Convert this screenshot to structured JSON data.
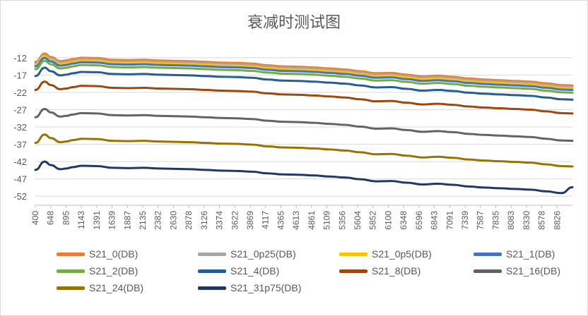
{
  "chart_data": {
    "type": "line",
    "title": "衰减时测试图",
    "xlabel": "",
    "ylabel": "",
    "ylim": [
      -54,
      -10
    ],
    "yticks": [
      -12,
      -17,
      -22,
      -27,
      -32,
      -37,
      -42,
      -47,
      -52
    ],
    "xlim": [
      400,
      9000
    ],
    "xtick_labels": [
      "400",
      "648",
      "895",
      "1143",
      "1391",
      "1639",
      "1887",
      "2135",
      "2382",
      "2630",
      "2878",
      "3126",
      "3374",
      "3622",
      "3869",
      "4117",
      "4365",
      "4613",
      "4861",
      "5109",
      "5356",
      "5604",
      "5852",
      "6100",
      "6348",
      "6596",
      "6843",
      "7091",
      "7339",
      "7587",
      "7835",
      "8083",
      "8330",
      "8578",
      "8826"
    ],
    "grid": "horizontal",
    "legend_position": "bottom",
    "x": [
      400,
      550,
      648,
      800,
      895,
      1000,
      1143,
      1391,
      1639,
      1887,
      2135,
      2382,
      2630,
      2878,
      3126,
      3374,
      3622,
      3869,
      4117,
      4365,
      4613,
      4861,
      5109,
      5356,
      5604,
      5852,
      6100,
      6348,
      6596,
      6843,
      7091,
      7339,
      7587,
      7835,
      8083,
      8330,
      8578,
      8826,
      9000
    ],
    "series": [
      {
        "name": "S21_0(DB)",
        "color": "#ED7D31",
        "values": [
          -13.2,
          -10.8,
          -11.8,
          -13.0,
          -12.8,
          -12.4,
          -12.0,
          -12.1,
          -12.6,
          -12.7,
          -12.6,
          -12.8,
          -12.9,
          -13.0,
          -13.2,
          -13.4,
          -13.5,
          -13.7,
          -14.2,
          -14.5,
          -14.6,
          -14.8,
          -15.1,
          -15.4,
          -15.9,
          -16.5,
          -16.4,
          -16.9,
          -17.4,
          -17.2,
          -17.5,
          -18.0,
          -18.3,
          -18.5,
          -18.7,
          -18.9,
          -19.4,
          -19.9,
          -20.0
        ]
      },
      {
        "name": "S21_0p25(DB)",
        "color": "#A5A5A5",
        "values": [
          -13.6,
          -11.2,
          -12.2,
          -13.4,
          -13.2,
          -12.8,
          -12.4,
          -12.5,
          -13.0,
          -13.1,
          -13.0,
          -13.2,
          -13.3,
          -13.4,
          -13.6,
          -13.8,
          -13.9,
          -14.1,
          -14.6,
          -14.9,
          -15.0,
          -15.2,
          -15.5,
          -15.8,
          -16.3,
          -16.9,
          -16.8,
          -17.3,
          -17.8,
          -17.6,
          -17.9,
          -18.4,
          -18.7,
          -18.9,
          -19.1,
          -19.3,
          -19.8,
          -20.3,
          -20.4
        ]
      },
      {
        "name": "S21_0p5(DB)",
        "color": "#FFC000",
        "values": [
          -14.0,
          -11.6,
          -12.6,
          -13.8,
          -13.6,
          -13.2,
          -12.8,
          -12.9,
          -13.4,
          -13.5,
          -13.4,
          -13.6,
          -13.7,
          -13.8,
          -14.0,
          -14.2,
          -14.3,
          -14.5,
          -15.0,
          -15.3,
          -15.4,
          -15.6,
          -15.9,
          -16.2,
          -16.7,
          -17.3,
          -17.2,
          -17.7,
          -18.2,
          -18.0,
          -18.3,
          -18.8,
          -19.1,
          -19.3,
          -19.5,
          -19.7,
          -20.2,
          -20.7,
          -20.8
        ]
      },
      {
        "name": "S21_1(DB)",
        "color": "#4472C4",
        "values": [
          -14.5,
          -12.1,
          -13.1,
          -14.3,
          -14.1,
          -13.7,
          -13.3,
          -13.4,
          -13.9,
          -14.0,
          -13.9,
          -14.1,
          -14.2,
          -14.3,
          -14.5,
          -14.7,
          -14.8,
          -15.0,
          -15.5,
          -15.8,
          -15.9,
          -16.1,
          -16.4,
          -16.7,
          -17.2,
          -17.8,
          -17.7,
          -18.2,
          -18.7,
          -18.5,
          -18.8,
          -19.3,
          -19.6,
          -19.8,
          -20.0,
          -20.2,
          -20.7,
          -21.2,
          -21.3
        ]
      },
      {
        "name": "S21_2(DB)",
        "color": "#70AD47",
        "values": [
          -15.3,
          -12.9,
          -13.9,
          -15.1,
          -14.9,
          -14.5,
          -14.1,
          -14.2,
          -14.7,
          -14.8,
          -14.7,
          -14.9,
          -15.0,
          -15.1,
          -15.3,
          -15.5,
          -15.6,
          -15.8,
          -16.3,
          -16.6,
          -16.7,
          -16.9,
          -17.2,
          -17.5,
          -18.0,
          -18.6,
          -18.5,
          -19.0,
          -19.5,
          -19.3,
          -19.6,
          -20.1,
          -20.4,
          -20.6,
          -20.8,
          -21.0,
          -21.5,
          -22.0,
          -22.1
        ]
      },
      {
        "name": "S21_4(DB)",
        "color": "#255E91",
        "values": [
          -17.3,
          -14.9,
          -15.9,
          -17.1,
          -16.9,
          -16.5,
          -16.1,
          -16.2,
          -16.7,
          -16.8,
          -16.7,
          -16.9,
          -17.0,
          -17.1,
          -17.3,
          -17.5,
          -17.6,
          -17.8,
          -18.3,
          -18.6,
          -18.7,
          -18.9,
          -19.2,
          -19.5,
          -20.0,
          -20.6,
          -20.5,
          -21.0,
          -21.5,
          -21.3,
          -21.6,
          -22.1,
          -22.4,
          -22.6,
          -22.8,
          -23.0,
          -23.5,
          -24.0,
          -24.1
        ]
      },
      {
        "name": "S21_8(DB)",
        "color": "#9E480E",
        "values": [
          -21.3,
          -18.9,
          -19.9,
          -21.1,
          -20.9,
          -20.5,
          -20.1,
          -20.2,
          -20.7,
          -20.8,
          -20.7,
          -20.9,
          -21.0,
          -21.1,
          -21.3,
          -21.5,
          -21.6,
          -21.8,
          -22.3,
          -22.6,
          -22.7,
          -22.9,
          -23.2,
          -23.5,
          -24.0,
          -24.6,
          -24.5,
          -25.0,
          -25.5,
          -25.3,
          -25.6,
          -26.1,
          -26.4,
          -26.6,
          -26.8,
          -27.0,
          -27.5,
          -28.0,
          -28.1
        ]
      },
      {
        "name": "S21_16(DB)",
        "color": "#636363",
        "values": [
          -29.2,
          -26.8,
          -27.8,
          -29.0,
          -28.8,
          -28.4,
          -28.0,
          -28.1,
          -28.6,
          -28.7,
          -28.6,
          -28.8,
          -28.9,
          -29.0,
          -29.2,
          -29.4,
          -29.5,
          -29.7,
          -30.2,
          -30.5,
          -30.6,
          -30.8,
          -31.1,
          -31.4,
          -31.9,
          -32.5,
          -32.4,
          -32.9,
          -33.4,
          -33.2,
          -33.5,
          -34.0,
          -34.3,
          -34.5,
          -34.7,
          -34.9,
          -35.4,
          -35.9,
          -36.0
        ]
      },
      {
        "name": "S21_24(DB)",
        "color": "#997300",
        "values": [
          -36.6,
          -34.2,
          -35.2,
          -36.4,
          -36.2,
          -35.8,
          -35.4,
          -35.5,
          -36.0,
          -36.1,
          -36.0,
          -36.2,
          -36.3,
          -36.4,
          -36.6,
          -36.8,
          -36.9,
          -37.1,
          -37.6,
          -37.9,
          -38.0,
          -38.2,
          -38.5,
          -38.8,
          -39.3,
          -39.9,
          -39.8,
          -40.3,
          -40.8,
          -40.6,
          -40.9,
          -41.4,
          -41.7,
          -41.9,
          -42.1,
          -42.3,
          -42.8,
          -43.3,
          -43.4
        ]
      },
      {
        "name": "S21_31p75(DB)",
        "color": "#203864",
        "values": [
          -44.4,
          -42.0,
          -43.0,
          -44.2,
          -44.0,
          -43.6,
          -43.2,
          -43.3,
          -43.8,
          -43.9,
          -43.8,
          -44.0,
          -44.1,
          -44.2,
          -44.4,
          -44.6,
          -44.7,
          -44.9,
          -45.4,
          -45.7,
          -45.8,
          -46.0,
          -46.3,
          -46.6,
          -47.1,
          -47.7,
          -47.6,
          -48.1,
          -48.6,
          -48.4,
          -48.7,
          -49.2,
          -49.5,
          -49.7,
          -49.9,
          -50.1,
          -50.6,
          -51.1,
          -49.4
        ]
      }
    ]
  }
}
